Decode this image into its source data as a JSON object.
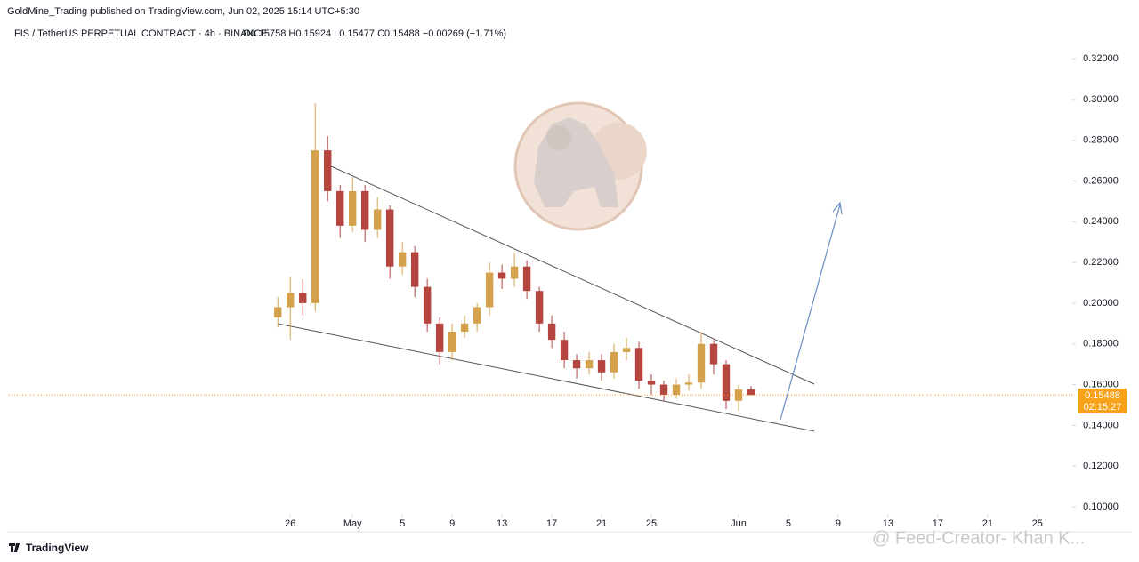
{
  "published": "GoldMine_Trading published on TradingView.com, Jun 02, 2025 15:14 UTC+5:30",
  "brand": "TradingView",
  "watermark": "@ Feed-Creator- Khan K...",
  "countdown": "02:15:27",
  "chart_data": {
    "type": "candlestick",
    "symbol": "FIS / TetherUS PERPETUAL CONTRACT · 4h · BINANCE",
    "ohlc_legend": "O0.15758 H0.15924 L0.15477 C0.15488 −0.00269 (−1.71%)",
    "x": [
      -1,
      0,
      1,
      2,
      3,
      4,
      5,
      6,
      7,
      8,
      9,
      10,
      11,
      12,
      13,
      14,
      15,
      16,
      17,
      18,
      19,
      20,
      21,
      22,
      23,
      24,
      25,
      26,
      27,
      28,
      29,
      30,
      31,
      32,
      33,
      34,
      35,
      36,
      37
    ],
    "open": [
      0.193,
      0.198,
      0.205,
      0.2,
      0.275,
      0.255,
      0.238,
      0.255,
      0.236,
      0.246,
      0.218,
      0.225,
      0.208,
      0.19,
      0.176,
      0.186,
      0.19,
      0.198,
      0.215,
      0.212,
      0.218,
      0.206,
      0.19,
      0.182,
      0.172,
      0.168,
      0.172,
      0.166,
      0.176,
      0.178,
      0.162,
      0.16,
      0.155,
      0.16,
      0.161,
      0.18,
      0.17,
      0.152,
      0.15758
    ],
    "high": [
      0.203,
      0.213,
      0.212,
      0.298,
      0.282,
      0.258,
      0.262,
      0.258,
      0.252,
      0.248,
      0.23,
      0.228,
      0.212,
      0.193,
      0.19,
      0.194,
      0.2,
      0.22,
      0.219,
      0.225,
      0.221,
      0.208,
      0.194,
      0.186,
      0.175,
      0.176,
      0.175,
      0.18,
      0.183,
      0.181,
      0.165,
      0.162,
      0.163,
      0.165,
      0.186,
      0.182,
      0.172,
      0.16,
      0.15924
    ],
    "low": [
      0.188,
      0.182,
      0.194,
      0.196,
      0.25,
      0.232,
      0.235,
      0.23,
      0.232,
      0.212,
      0.214,
      0.203,
      0.186,
      0.17,
      0.172,
      0.183,
      0.186,
      0.194,
      0.207,
      0.208,
      0.202,
      0.186,
      0.178,
      0.168,
      0.163,
      0.165,
      0.162,
      0.163,
      0.172,
      0.158,
      0.155,
      0.152,
      0.153,
      0.157,
      0.158,
      0.165,
      0.148,
      0.147,
      0.15477
    ],
    "close": [
      0.198,
      0.205,
      0.2,
      0.275,
      0.255,
      0.238,
      0.255,
      0.236,
      0.246,
      0.218,
      0.225,
      0.208,
      0.19,
      0.176,
      0.186,
      0.19,
      0.198,
      0.215,
      0.212,
      0.218,
      0.206,
      0.19,
      0.182,
      0.172,
      0.168,
      0.172,
      0.166,
      0.176,
      0.178,
      0.162,
      0.16,
      0.155,
      0.16,
      0.161,
      0.18,
      0.17,
      0.152,
      0.15758,
      0.15488
    ],
    "up_color": "#d4a24c",
    "down_color": "#b5463f",
    "last_price_color": "#f7a21b",
    "xlim": [
      -22.6,
      62.8
    ],
    "xticks": [
      {
        "value": 0,
        "label": "26"
      },
      {
        "value": 5,
        "label": "May"
      },
      {
        "value": 9,
        "label": "5"
      },
      {
        "value": 13,
        "label": "9"
      },
      {
        "value": 17,
        "label": "13"
      },
      {
        "value": 21,
        "label": "17"
      },
      {
        "value": 25,
        "label": "21"
      },
      {
        "value": 29,
        "label": "25"
      },
      {
        "value": 36,
        "label": "Jun"
      },
      {
        "value": 40,
        "label": "5"
      },
      {
        "value": 44,
        "label": "9"
      },
      {
        "value": 48,
        "label": "13"
      },
      {
        "value": 52,
        "label": "17"
      },
      {
        "value": 56,
        "label": "21"
      },
      {
        "value": 60,
        "label": "25"
      }
    ],
    "ylim": [
      0.0965,
      0.327
    ],
    "yticks": [
      {
        "value": 0.1,
        "label": "0.10000"
      },
      {
        "value": 0.12,
        "label": "0.12000"
      },
      {
        "value": 0.14,
        "label": "0.14000"
      },
      {
        "value": 0.16,
        "label": "0.16000"
      },
      {
        "value": 0.18,
        "label": "0.18000"
      },
      {
        "value": 0.2,
        "label": "0.20000"
      },
      {
        "value": 0.22,
        "label": "0.22000"
      },
      {
        "value": 0.24,
        "label": "0.24000"
      },
      {
        "value": 0.26,
        "label": "0.26000"
      },
      {
        "value": 0.28,
        "label": "0.28000"
      },
      {
        "value": 0.3,
        "label": "0.30000"
      },
      {
        "value": 0.32,
        "label": "0.32000"
      }
    ],
    "grid": false
  }
}
